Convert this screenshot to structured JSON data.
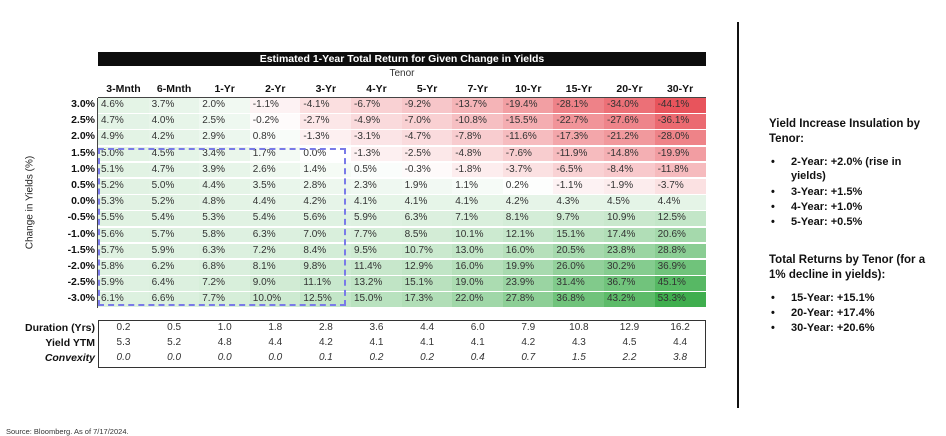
{
  "chart_data": {
    "type": "heatmap",
    "title": "Estimated 1-Year Total Return for Given Change in Yields",
    "column_group_label": "Tenor",
    "ylabel": "Change in Yields (%)",
    "columns": [
      "3-Mnth",
      "6-Mnth",
      "1-Yr",
      "2-Yr",
      "3-Yr",
      "4-Yr",
      "5-Yr",
      "7-Yr",
      "10-Yr",
      "15-Yr",
      "20-Yr",
      "30-Yr"
    ],
    "rows": [
      "3.0%",
      "2.5%",
      "2.0%",
      "1.5%",
      "1.0%",
      "0.5%",
      "0.0%",
      "-0.5%",
      "-1.0%",
      "-1.5%",
      "-2.0%",
      "-2.5%",
      "-3.0%"
    ],
    "values": [
      [
        "4.6%",
        "3.7%",
        "2.0%",
        "-1.1%",
        "-4.1%",
        "-6.7%",
        "-9.2%",
        "-13.7%",
        "-19.4%",
        "-28.1%",
        "-34.0%",
        "-44.1%"
      ],
      [
        "4.7%",
        "4.0%",
        "2.5%",
        "-0.2%",
        "-2.7%",
        "-4.9%",
        "-7.0%",
        "-10.8%",
        "-15.5%",
        "-22.7%",
        "-27.6%",
        "-36.1%"
      ],
      [
        "4.9%",
        "4.2%",
        "2.9%",
        "0.8%",
        "-1.3%",
        "-3.1%",
        "-4.7%",
        "-7.8%",
        "-11.6%",
        "-17.3%",
        "-21.2%",
        "-28.0%"
      ],
      [
        "5.0%",
        "4.5%",
        "3.4%",
        "1.7%",
        "0.0%",
        "-1.3%",
        "-2.5%",
        "-4.8%",
        "-7.6%",
        "-11.9%",
        "-14.8%",
        "-19.9%"
      ],
      [
        "5.1%",
        "4.7%",
        "3.9%",
        "2.6%",
        "1.4%",
        "0.5%",
        "-0.3%",
        "-1.8%",
        "-3.7%",
        "-6.5%",
        "-8.4%",
        "-11.8%"
      ],
      [
        "5.2%",
        "5.0%",
        "4.4%",
        "3.5%",
        "2.8%",
        "2.3%",
        "1.9%",
        "1.1%",
        "0.2%",
        "-1.1%",
        "-1.9%",
        "-3.7%"
      ],
      [
        "5.3%",
        "5.2%",
        "4.8%",
        "4.4%",
        "4.2%",
        "4.1%",
        "4.1%",
        "4.1%",
        "4.2%",
        "4.3%",
        "4.5%",
        "4.4%"
      ],
      [
        "5.5%",
        "5.4%",
        "5.3%",
        "5.4%",
        "5.6%",
        "5.9%",
        "6.3%",
        "7.1%",
        "8.1%",
        "9.7%",
        "10.9%",
        "12.5%"
      ],
      [
        "5.6%",
        "5.7%",
        "5.8%",
        "6.3%",
        "7.0%",
        "7.7%",
        "8.5%",
        "10.1%",
        "12.1%",
        "15.1%",
        "17.4%",
        "20.6%"
      ],
      [
        "5.7%",
        "5.9%",
        "6.3%",
        "7.2%",
        "8.4%",
        "9.5%",
        "10.7%",
        "13.0%",
        "16.0%",
        "20.5%",
        "23.8%",
        "28.8%"
      ],
      [
        "5.8%",
        "6.2%",
        "6.8%",
        "8.1%",
        "9.8%",
        "11.4%",
        "12.9%",
        "16.0%",
        "19.9%",
        "26.0%",
        "30.2%",
        "36.9%"
      ],
      [
        "5.9%",
        "6.4%",
        "7.2%",
        "9.0%",
        "11.1%",
        "13.2%",
        "15.1%",
        "19.0%",
        "23.9%",
        "31.4%",
        "36.7%",
        "45.1%"
      ],
      [
        "6.1%",
        "6.6%",
        "7.7%",
        "10.0%",
        "12.5%",
        "15.0%",
        "17.3%",
        "22.0%",
        "27.8%",
        "36.8%",
        "43.2%",
        "53.3%"
      ]
    ],
    "colors": {
      "negative": "#e8545c",
      "positive": "#3fae4e",
      "neutral": "#ffffff",
      "highlight_border": "#7a7ae8"
    },
    "summary_rows": [
      {
        "label": "Duration (Yrs)",
        "italic": false,
        "values": [
          "0.2",
          "0.5",
          "1.0",
          "1.8",
          "2.8",
          "3.6",
          "4.4",
          "6.0",
          "7.9",
          "10.8",
          "12.9",
          "16.2"
        ]
      },
      {
        "label": "Yield YTM",
        "italic": false,
        "values": [
          "5.3",
          "5.2",
          "4.8",
          "4.4",
          "4.2",
          "4.1",
          "4.1",
          "4.1",
          "4.2",
          "4.3",
          "4.5",
          "4.4"
        ]
      },
      {
        "label": "Convexity",
        "italic": true,
        "values": [
          "0.0",
          "0.0",
          "0.0",
          "0.0",
          "0.1",
          "0.2",
          "0.2",
          "0.4",
          "0.7",
          "1.5",
          "2.2",
          "3.8"
        ]
      }
    ]
  },
  "sidebar": {
    "insulation_title": "Yield Increase Insulation by Tenor:",
    "insulation_items": [
      "2-Year: +2.0% (rise in yields)",
      "3-Year: +1.5%",
      "4-Year: +1.0%",
      "5-Year: +0.5%"
    ],
    "returns_title": "Total Returns by Tenor (for a 1% decline in yields):",
    "returns_items": [
      "15-Year: +15.1%",
      "20-Year: +17.4%",
      "30-Year: +20.6%"
    ],
    "bullet": "•"
  },
  "source": "Source: Bloomberg. As of 7/17/2024."
}
